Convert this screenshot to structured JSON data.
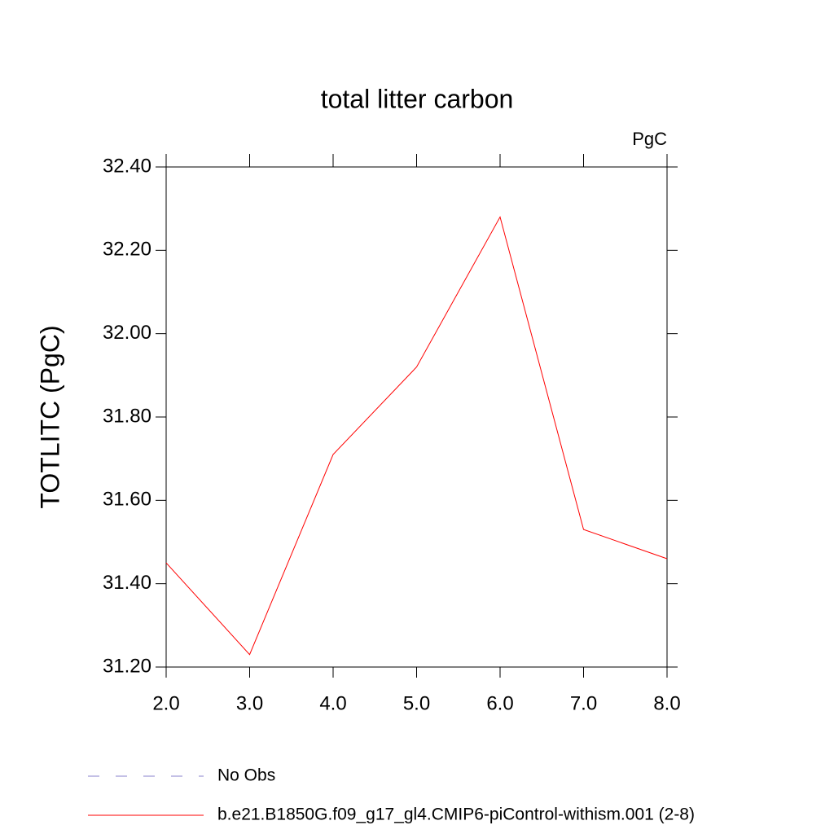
{
  "chart_data": {
    "type": "line",
    "title": "total litter carbon",
    "units": "PgC",
    "y_label": "TOTLITC  (PgC)",
    "x": [
      2,
      3,
      4,
      5,
      6,
      7,
      8
    ],
    "series": [
      {
        "name": "No Obs",
        "color": "#8a80cc",
        "dash": true,
        "values": [
          null,
          null,
          null,
          null,
          null,
          null,
          null
        ]
      },
      {
        "name": "b.e21.B1850G.f09_g17_gl4.CMIP6-piControl-withism.001 (2-8)",
        "color": "#ff0000",
        "dash": false,
        "values": [
          31.45,
          31.23,
          31.71,
          31.92,
          32.28,
          31.53,
          31.46
        ]
      }
    ],
    "xlim": [
      2,
      8
    ],
    "xticks": [
      {
        "value": 2,
        "label": "2.0"
      },
      {
        "value": 3,
        "label": "3.0"
      },
      {
        "value": 4,
        "label": "4.0"
      },
      {
        "value": 5,
        "label": "5.0"
      },
      {
        "value": 6,
        "label": "6.0"
      },
      {
        "value": 7,
        "label": "7.0"
      },
      {
        "value": 8,
        "label": "8.0"
      }
    ],
    "ylim": [
      31.2,
      32.4
    ],
    "yticks": [
      {
        "value": 31.2,
        "label": "31.20"
      },
      {
        "value": 31.4,
        "label": "31.40"
      },
      {
        "value": 31.6,
        "label": "31.60"
      },
      {
        "value": 31.8,
        "label": "31.80"
      },
      {
        "value": 32.0,
        "label": "32.00"
      },
      {
        "value": 32.2,
        "label": "32.20"
      },
      {
        "value": 32.4,
        "label": "32.40"
      }
    ],
    "grid": false
  }
}
